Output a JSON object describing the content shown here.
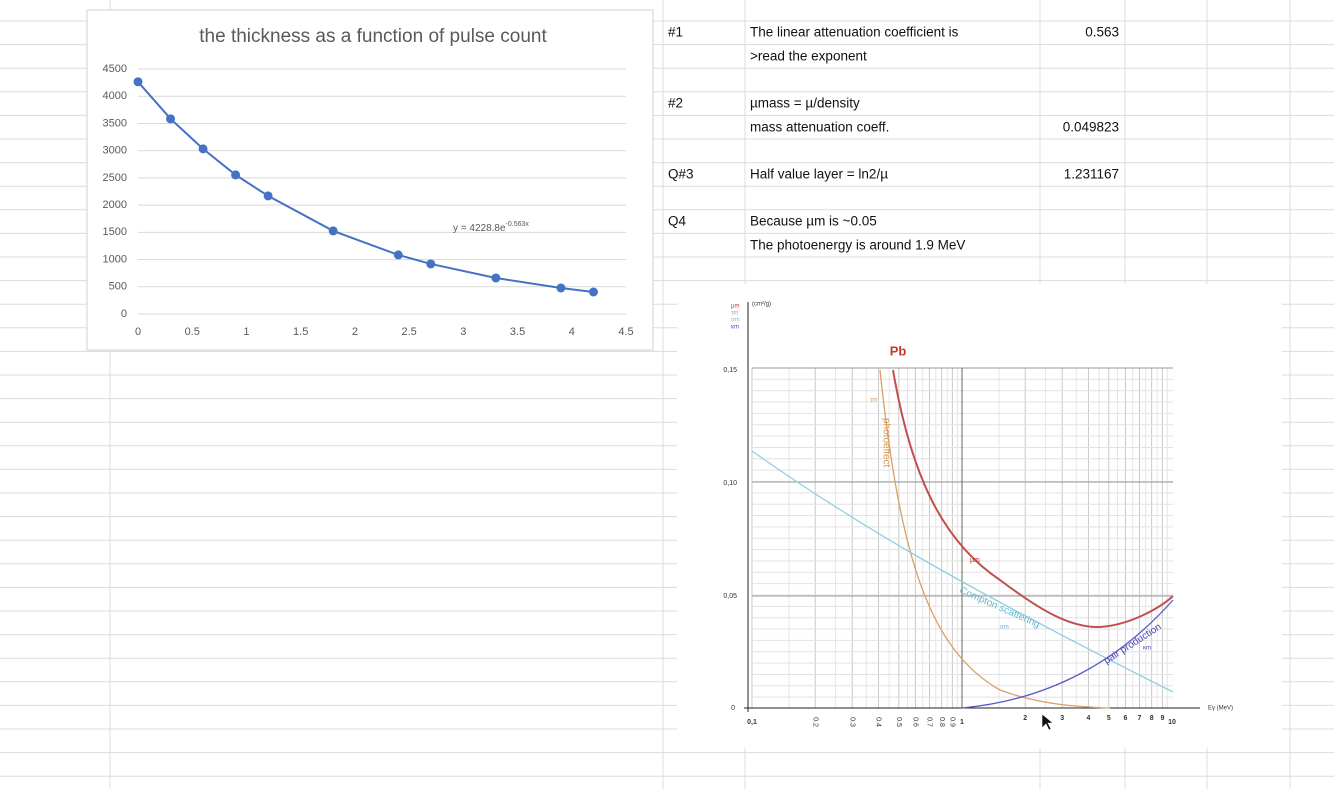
{
  "chart_data": {
    "type": "scatter",
    "title": "the thickness as a function of pulse count",
    "x": [
      0,
      0.3,
      0.6,
      0.9,
      1.2,
      1.8,
      2.4,
      2.7,
      3.3,
      3.9,
      4.2
    ],
    "values": [
      4265,
      3585,
      3033,
      2555,
      2169,
      1526,
      1085,
      919,
      662,
      478,
      404
    ],
    "color": "#4472c4",
    "xlim": [
      0,
      4.5
    ],
    "xticks": [
      0,
      0.5,
      1,
      1.5,
      2,
      2.5,
      3,
      3.5,
      4,
      4.5
    ],
    "ylim": [
      0,
      4500
    ],
    "yticks": [
      0,
      500,
      1000,
      1500,
      2000,
      2500,
      3000,
      3500,
      4000,
      4500
    ],
    "grid": true,
    "annotation": {
      "text": "y = 4228.8e",
      "superscript": "-0.563x"
    }
  },
  "cells": {
    "q1": {
      "tag": "#1",
      "line1": "The linear attenuation coefficient is",
      "line2": ">read the exponent",
      "value": 0.563
    },
    "q2": {
      "tag": "#2",
      "line1": "µmass = µ/density",
      "line2": "mass attenuation coeff.",
      "value": 0.049823
    },
    "q3": {
      "tag": "Q#3",
      "line1": "Half value layer = ln2/µ",
      "value": 1.231167
    },
    "q4": {
      "tag": "Q4",
      "line1": "Because µm is ~0.05",
      "line2": "The photoenergy is around 1.9 MeV"
    }
  },
  "figure": {
    "title": "Pb",
    "y_unit": "(cm²/g)",
    "y_symbols": [
      "µm",
      "τm",
      "σm",
      "κm"
    ],
    "yticks": [
      "0,15",
      "0,10",
      "0,05",
      "0"
    ],
    "xticks": [
      "0,1",
      "0.2",
      "0.3",
      "0.4",
      "0.5",
      "0.6",
      "0.7",
      "0.8",
      "0.9",
      "1",
      "2",
      "3",
      "4",
      "5",
      "6",
      "7",
      "8",
      "9",
      "10"
    ],
    "x_label": "Eγ (MeV)",
    "curves": {
      "photoeffect": "photoeffect",
      "compton": "Compton scattering",
      "pair": "pair production"
    },
    "curve_symbols": {
      "tau": "τm",
      "mu": "µm",
      "sigma": "σm",
      "kappa": "κm"
    }
  }
}
